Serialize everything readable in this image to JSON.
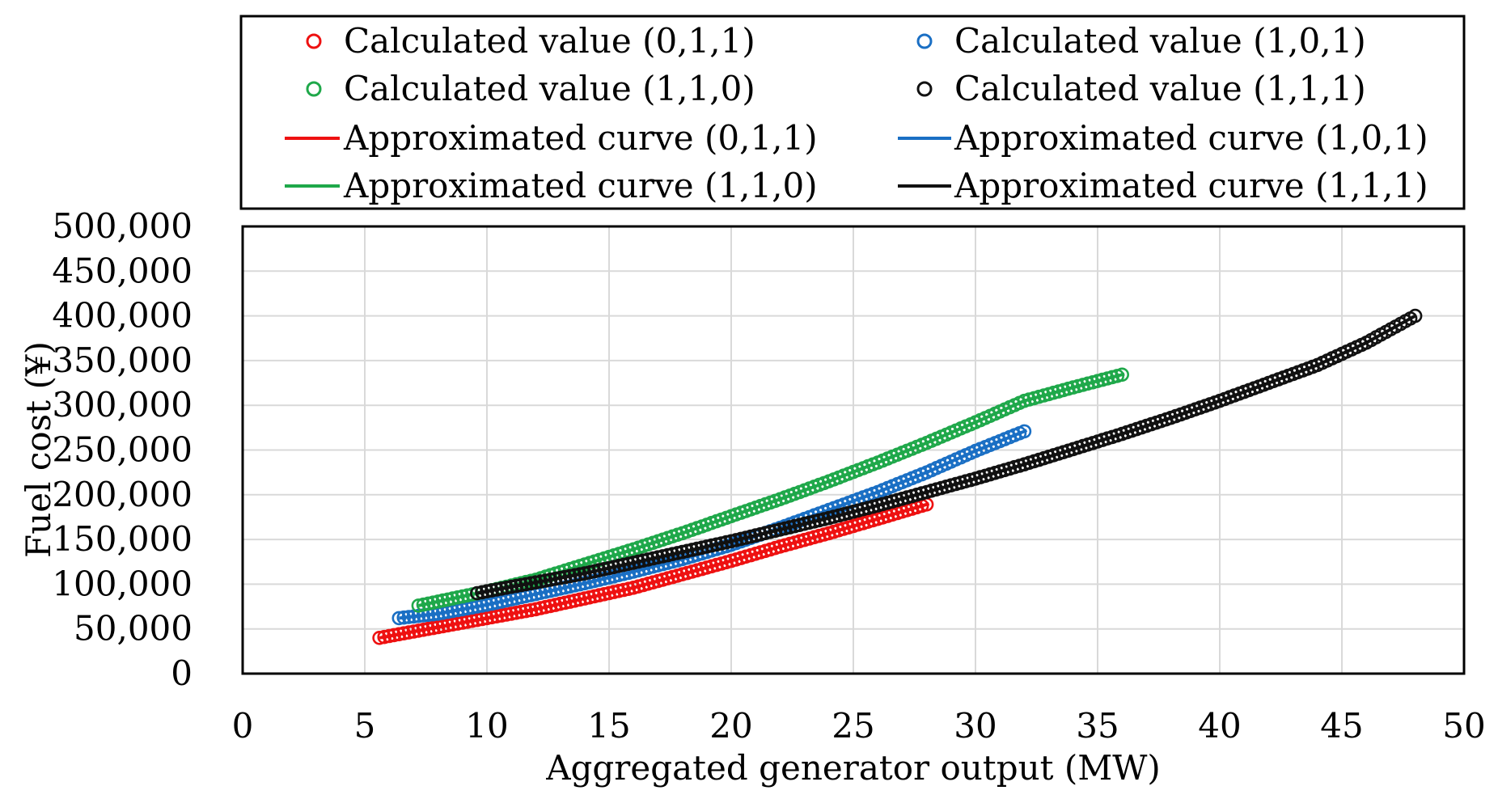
{
  "chart_data": {
    "type": "scatter",
    "title": "",
    "xlabel": "Aggregated generator output (MW)",
    "ylabel": "Fuel cost (¥)",
    "xlim": [
      0,
      50
    ],
    "ylim": [
      0,
      500000
    ],
    "xticks": [
      0,
      5,
      10,
      15,
      20,
      25,
      30,
      35,
      40,
      45,
      50
    ],
    "xtick_labels": [
      "0",
      "5",
      "10",
      "15",
      "20",
      "25",
      "30",
      "35",
      "40",
      "45",
      "50"
    ],
    "yticks": [
      0,
      50000,
      100000,
      150000,
      200000,
      250000,
      300000,
      350000,
      400000,
      450000,
      500000
    ],
    "ytick_labels": [
      "0",
      "50,000",
      "100,000",
      "150,000",
      "200,000",
      "250,000",
      "300,000",
      "350,000",
      "400,000",
      "450,000",
      "500,000"
    ],
    "grid": true,
    "legend_position": "top",
    "series": [
      {
        "id": "011",
        "color": "#ee1111",
        "calc_label": "Calculated value (0,1,1)",
        "curve_label": "Approximated curve (0,1,1)",
        "x_range": [
          5.6,
          28.1
        ],
        "x": [
          5.6,
          8,
          10,
          12,
          14,
          16,
          18,
          20,
          22,
          24,
          26,
          28.1
        ],
        "cost": [
          40000,
          52000,
          62000,
          72000,
          84000,
          96000,
          111000,
          126000,
          142000,
          157000,
          173000,
          190000
        ]
      },
      {
        "id": "101",
        "color": "#1a6fc4",
        "calc_label": "Calculated value (1,0,1)",
        "curve_label": "Approximated curve (1,0,1)",
        "x_range": [
          6.4,
          32.1
        ],
        "x": [
          6.4,
          8,
          10,
          12,
          14,
          16,
          18,
          20,
          22,
          24,
          26,
          28,
          30,
          32.1
        ],
        "cost": [
          62000,
          67000,
          77000,
          89000,
          101000,
          114000,
          128000,
          144000,
          163000,
          183000,
          203000,
          225000,
          249000,
          272000
        ]
      },
      {
        "id": "110",
        "color": "#1fa84a",
        "calc_label": "Calculated value (1,1,0)",
        "curve_label": "Approximated curve (1,1,0)",
        "x_range": [
          7.2,
          36.1
        ],
        "x": [
          7.2,
          10,
          12,
          14,
          16,
          18,
          20,
          22,
          24,
          26,
          28,
          30,
          32,
          34,
          36.1
        ],
        "cost": [
          76000,
          92000,
          105000,
          122000,
          139000,
          157000,
          176000,
          195000,
          215000,
          236000,
          258000,
          281000,
          305000,
          320000,
          335000
        ]
      },
      {
        "id": "111",
        "color": "#111111",
        "calc_label": "Calculated value (1,1,1)",
        "curve_label": "Approximated curve (1,1,1)",
        "x_range": [
          9.6,
          48
        ],
        "x": [
          9.6,
          12,
          14,
          16,
          18,
          20,
          22,
          24,
          26,
          28,
          30,
          32,
          34,
          36,
          38,
          40,
          42,
          44,
          46,
          48
        ],
        "cost": [
          90000,
          102000,
          112000,
          124000,
          136000,
          148000,
          161000,
          174000,
          188000,
          203000,
          218000,
          234000,
          251000,
          268000,
          286000,
          305000,
          325000,
          345000,
          370000,
          400000
        ]
      }
    ]
  }
}
